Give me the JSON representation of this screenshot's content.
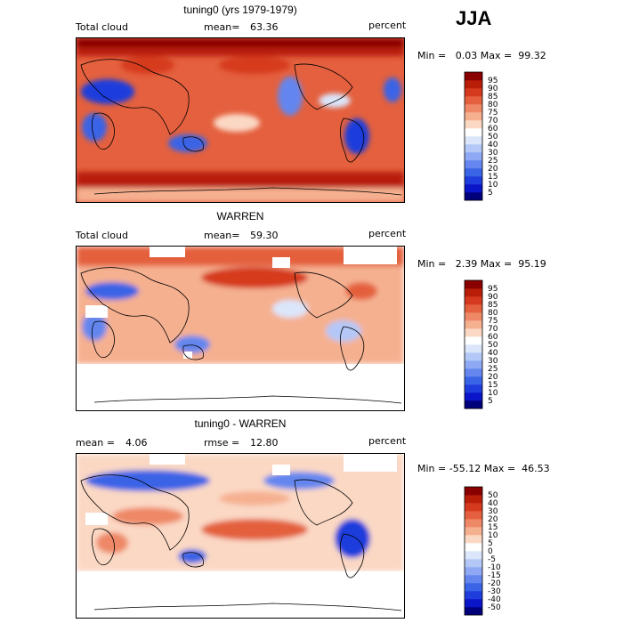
{
  "season": "JJA",
  "panels": [
    {
      "title": "tuning0 (yrs 1979-1979)",
      "left_label": "Total cloud",
      "mean_label": "mean=",
      "mean_value": "63.36",
      "units": "percent",
      "min_label": "Min =",
      "min_value": "0.03",
      "max_label": "Max =",
      "max_value": "99.32",
      "contour_levels": [
        "5",
        "10",
        "15",
        "20",
        "25",
        "30",
        "40",
        "50",
        "60",
        "70",
        "75",
        "80",
        "85",
        "90",
        "95"
      ],
      "colors": [
        "#00007a",
        "#0a14c8",
        "#1f3cdc",
        "#3a64e6",
        "#6486ee",
        "#8ea8f4",
        "#b4c8f8",
        "#dbe6fb",
        "#ffffff",
        "#fbd8c4",
        "#f5b090",
        "#ee8866",
        "#e4603e",
        "#d63a1e",
        "#b81e08",
        "#8a0000"
      ]
    },
    {
      "title": "WARREN",
      "left_label": "Total cloud",
      "mean_label": "mean=",
      "mean_value": "59.30",
      "units": "percent",
      "min_label": "Min =",
      "min_value": "2.39",
      "max_label": "Max =",
      "max_value": "95.19",
      "contour_levels": [
        "5",
        "10",
        "15",
        "20",
        "25",
        "30",
        "40",
        "50",
        "60",
        "70",
        "75",
        "80",
        "85",
        "90",
        "95"
      ],
      "colors": [
        "#00007a",
        "#0a14c8",
        "#1f3cdc",
        "#3a64e6",
        "#6486ee",
        "#8ea8f4",
        "#b4c8f8",
        "#dbe6fb",
        "#ffffff",
        "#fbd8c4",
        "#f5b090",
        "#ee8866",
        "#e4603e",
        "#d63a1e",
        "#b81e08",
        "#8a0000"
      ]
    },
    {
      "title": "tuning0 - WARREN",
      "left_label": "mean =",
      "left_value": "4.06",
      "mean_label": "rmse =",
      "mean_value": "12.80",
      "units": "percent",
      "min_label": "Min =",
      "min_value": "-55.12",
      "max_label": "Max =",
      "max_value": "46.53",
      "contour_levels": [
        "-50",
        "-40",
        "-30",
        "-20",
        "-15",
        "-10",
        "-5",
        "0",
        "5",
        "10",
        "15",
        "20",
        "30",
        "40",
        "50"
      ],
      "colors": [
        "#00007a",
        "#0a14c8",
        "#1f3cdc",
        "#3a64e6",
        "#6486ee",
        "#8ea8f4",
        "#b4c8f8",
        "#dbe6fb",
        "#ffffff",
        "#fbd8c4",
        "#f5b090",
        "#ee8866",
        "#e4603e",
        "#d63a1e",
        "#b81e08",
        "#8a0000"
      ]
    }
  ],
  "chart_data": {
    "type": "heatmap",
    "season": "JJA",
    "maps": [
      {
        "name": "tuning0 (yrs 1979-1979)",
        "variable": "Total cloud",
        "mean": 63.36,
        "min": 0.03,
        "max": 99.32,
        "units": "percent"
      },
      {
        "name": "WARREN",
        "variable": "Total cloud",
        "mean": 59.3,
        "min": 2.39,
        "max": 95.19,
        "units": "percent"
      },
      {
        "name": "tuning0 - WARREN",
        "mean": 4.06,
        "rmse": 12.8,
        "min": -55.12,
        "max": 46.53,
        "units": "percent"
      }
    ]
  }
}
